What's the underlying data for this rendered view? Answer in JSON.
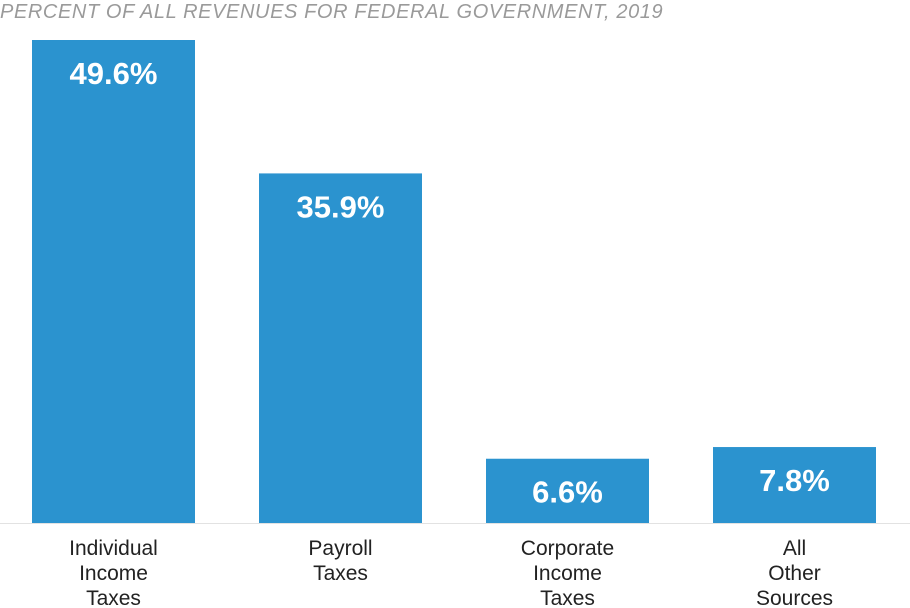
{
  "chart_data": {
    "type": "bar",
    "title": "PERCENT OF ALL REVENUES FOR FEDERAL GOVERNMENT, 2019",
    "categories": [
      [
        "Individual",
        "Income",
        "Taxes"
      ],
      [
        "Payroll",
        "Taxes"
      ],
      [
        "Corporate",
        "Income",
        "Taxes"
      ],
      [
        "All",
        "Other",
        "Sources"
      ]
    ],
    "values": [
      49.6,
      35.9,
      6.6,
      7.8
    ],
    "value_labels": [
      "49.6%",
      "35.9%",
      "6.6%",
      "7.8%"
    ],
    "xlabel": "",
    "ylabel": "",
    "ylim": [
      0,
      49.6
    ],
    "grid": false,
    "legend": "none",
    "bar_color": "#2b93cf",
    "baseline_color": "#e2e2e2"
  }
}
